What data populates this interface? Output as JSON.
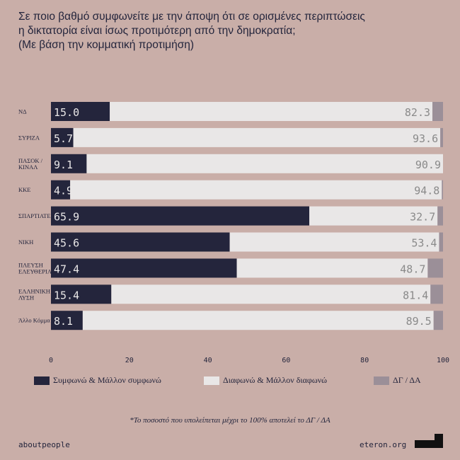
{
  "title_lines": [
    "Σε ποιο βαθμό συμφωνείτε με την άποψη ότι σε ορισμένες περιπτώσεις",
    "η δικτατορία είναι ίσως προτιμότερη από την δημοκρατία;",
    "(Με βάση την κομματική προτιμήση)"
  ],
  "colors": {
    "background": "#c9aea8",
    "agree": "#24253c",
    "disagree": "#e9e7e7",
    "dk": "#9b8f98",
    "agree_text": "#e9e7e7",
    "disagree_text": "#8a8a8a"
  },
  "chart_data": {
    "type": "bar",
    "orientation": "horizontal",
    "stacked": true,
    "categories": [
      [
        "ΝΔ"
      ],
      [
        "ΣΥΡΙΖΑ"
      ],
      [
        "ΠΑΣΟΚ /",
        "ΚΙΝΑΛ"
      ],
      [
        "ΚΚΕ"
      ],
      [
        "ΣΠΑΡΤΙΑΤΕΣ"
      ],
      [
        "ΝΙΚΗ"
      ],
      [
        "ΠΛΕΥΣΗ",
        "ΕΛΕΥΘΕΡΙΑΣ"
      ],
      [
        "ΕΛΛΗΝΙΚΗ",
        "ΛΥΣΗ"
      ],
      [
        "Άλλο Κόμμα"
      ]
    ],
    "series": [
      {
        "name": "Συμφωνώ & Μάλλον συμφωνώ",
        "values": [
          15.0,
          5.7,
          9.1,
          4.9,
          65.9,
          45.6,
          47.4,
          15.4,
          8.1
        ]
      },
      {
        "name": "Διαφωνώ & Μάλλον διαφωνώ",
        "values": [
          82.3,
          93.6,
          90.9,
          94.8,
          32.7,
          53.4,
          48.7,
          81.4,
          89.5
        ]
      },
      {
        "name": "ΔΓ / ΔΑ",
        "values": [
          2.7,
          0.7,
          0.0,
          0.3,
          1.4,
          1.0,
          3.9,
          3.2,
          2.4
        ]
      }
    ],
    "xlim": [
      0,
      100
    ],
    "xticks": [
      "0",
      "20",
      "40",
      "60",
      "80",
      "100"
    ],
    "value_labels": [
      [
        "15.0",
        "5.7",
        "9.1",
        "4.9",
        "65.9",
        "45.6",
        "47.4",
        "15.4",
        "8.1"
      ],
      [
        "82.3",
        "93.6",
        "90.9",
        "94.8",
        "32.7",
        "53.4",
        "48.7",
        "81.4",
        "89.5"
      ]
    ],
    "legend_position": "bottom"
  },
  "footnote": "*Το ποσοστό που υπολείπεται μέχρι το 100% αποτελεί το ΔΓ / ΔΑ",
  "brand_left": "aboutpeople",
  "brand_right": "eteron.org",
  "logo_icon": "eteron-logo-icon"
}
